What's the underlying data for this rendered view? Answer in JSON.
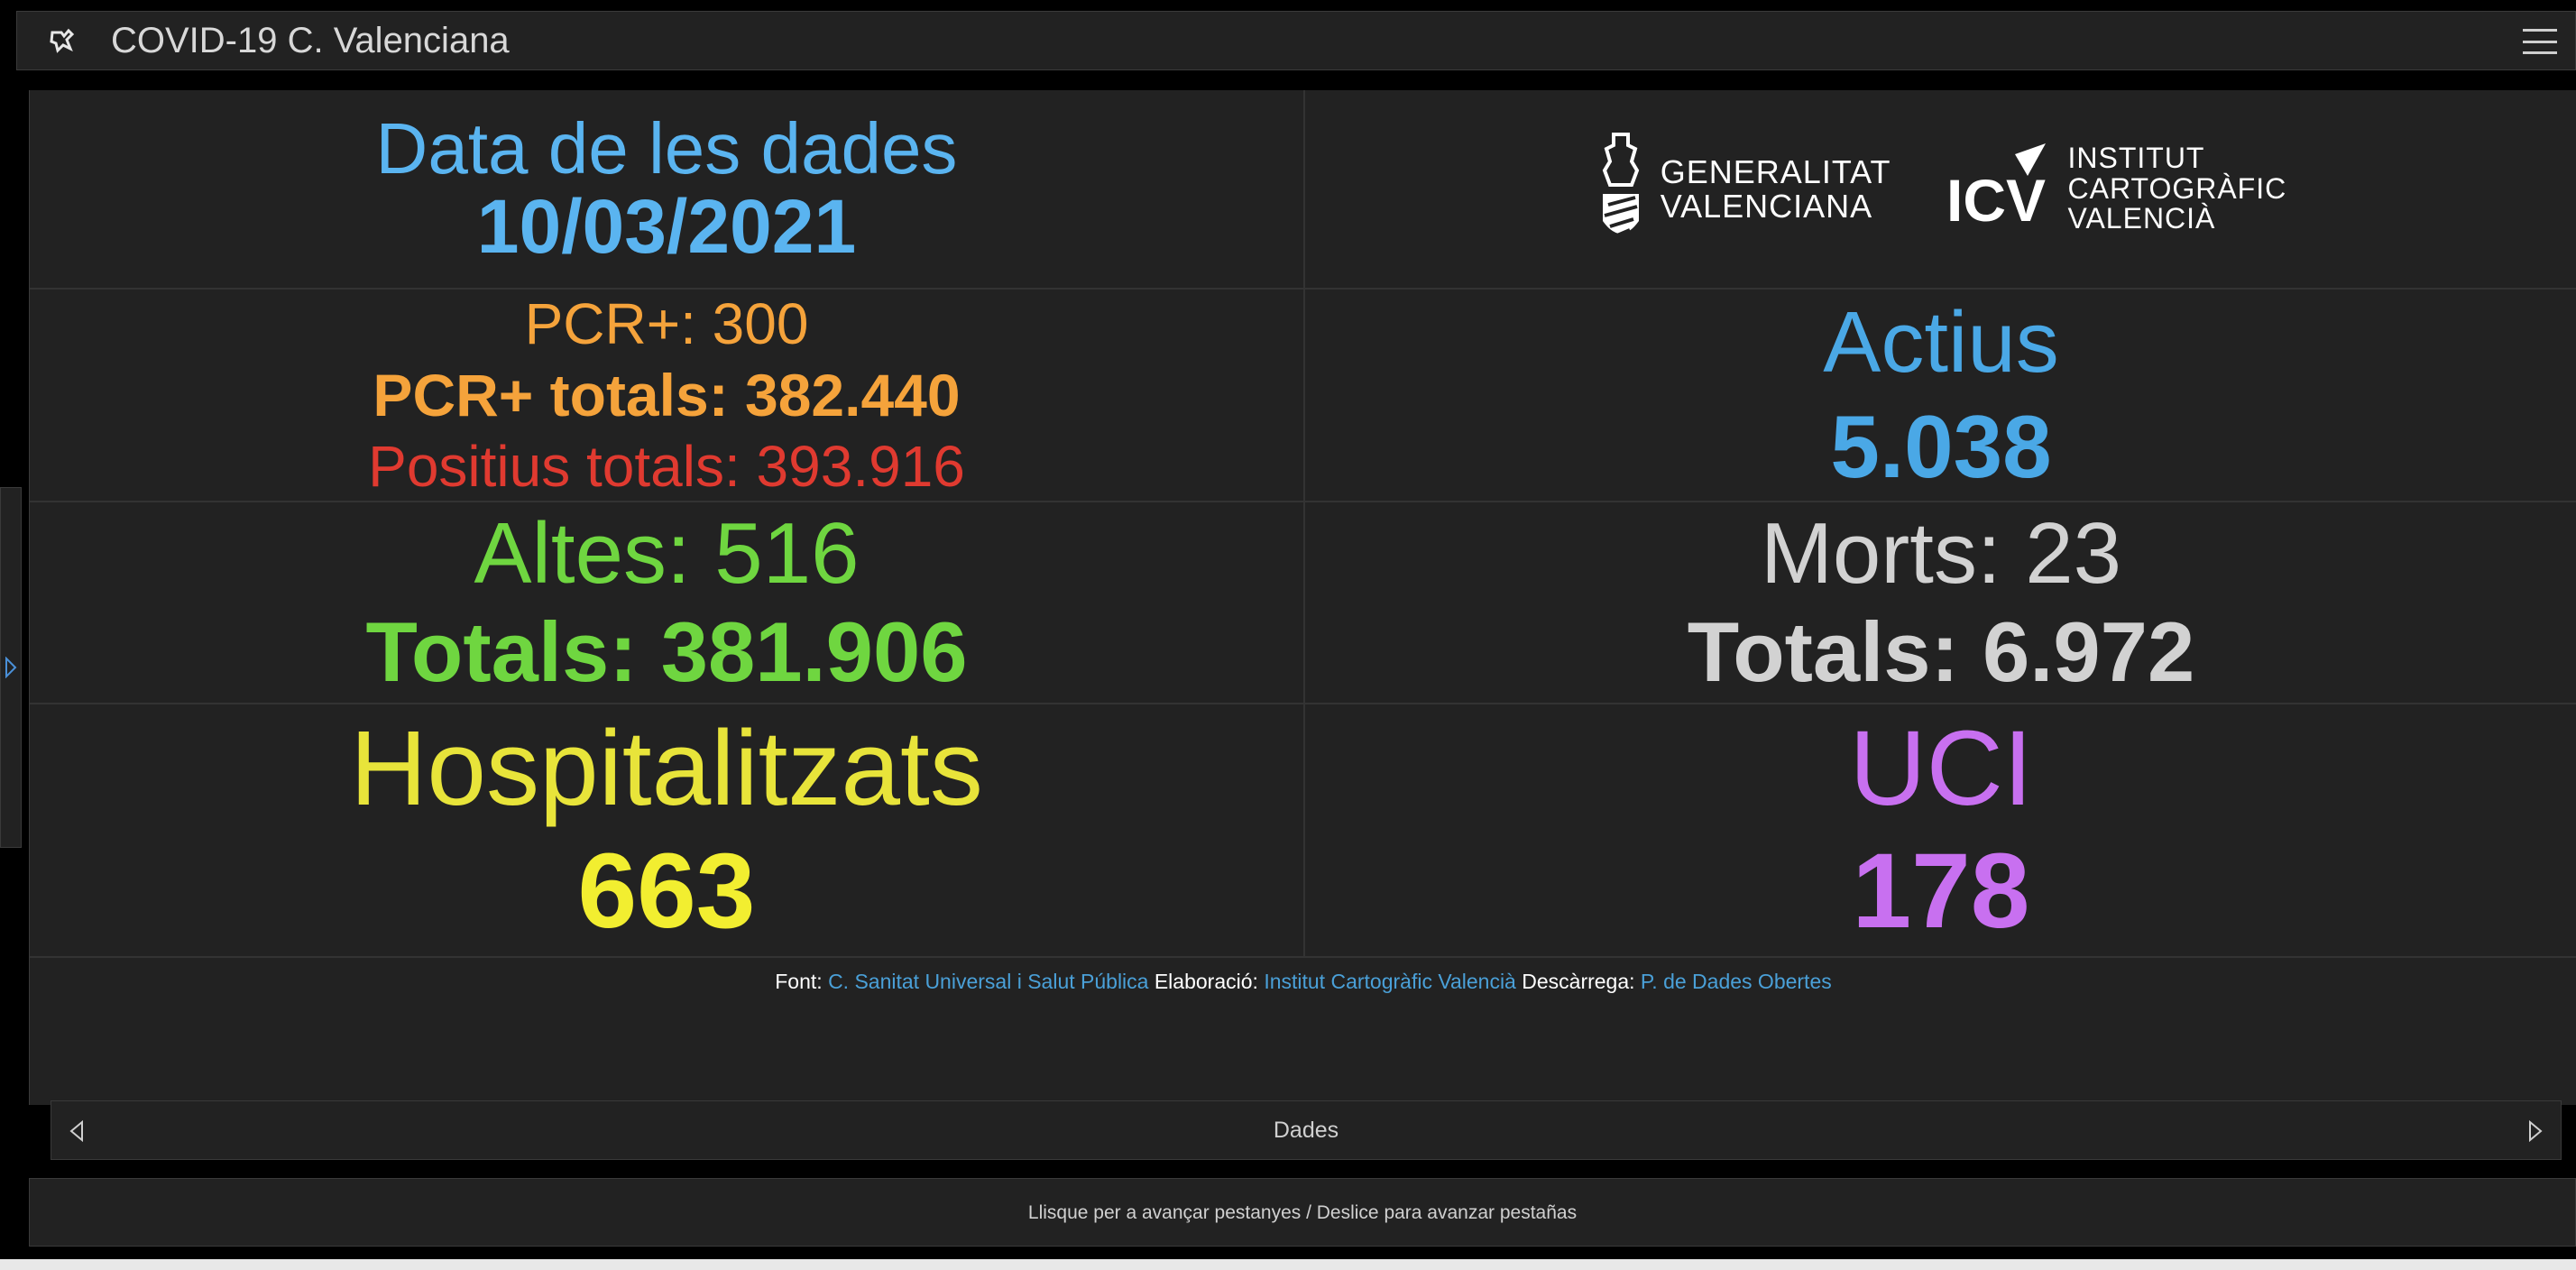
{
  "app": {
    "title": "COVID-19 C. Valenciana",
    "icon": "app-logo-icon",
    "menu_icon": "hamburger-menu-icon"
  },
  "dashboard": {
    "date": {
      "label": "Data de les dades",
      "value": "10/03/2021"
    },
    "logos": {
      "generalitat": {
        "line1": "GENERALITAT",
        "line2": "VALENCIANA"
      },
      "icv": {
        "mark": "ICV",
        "line1": "INSTITUT",
        "line2": "CARTOGRÀFIC",
        "line3": "VALENCIÀ"
      }
    },
    "pcr": {
      "daily": "PCR+: 300",
      "total": "PCR+ totals: 382.440",
      "positives_total": "Positius totals: 393.916"
    },
    "actius": {
      "label": "Actius",
      "value": "5.038"
    },
    "altes": {
      "daily": "Altes: 516",
      "total": "Totals: 381.906"
    },
    "morts": {
      "daily": "Morts: 23",
      "total": "Totals: 6.972"
    },
    "hospitalitzats": {
      "label": "Hospitalitzats",
      "value": "663"
    },
    "uci": {
      "label": "UCI",
      "value": "178"
    },
    "credits": {
      "font_label": "Font:",
      "font_link": "C. Sanitat Universal i Salut Pública",
      "elaboracio_label": "Elaboració:",
      "elaboracio_link": "Institut Cartogràfic Valencià",
      "descarrega_label": "Descàrrega:",
      "descarrega_link": "P. de Dades Obertes"
    }
  },
  "tabbar": {
    "label": "Dades"
  },
  "hint": "Llisque per a avançar pestanyes / Deslice para avanzar pestañas",
  "colors": {
    "blue": "#5ab4f0",
    "orange": "#f5a33b",
    "red": "#e03a30",
    "green": "#6fd640",
    "grey": "#d2d2d2",
    "yellow": "#f2ee30",
    "purple": "#c870f0",
    "link": "#4aa0d8"
  }
}
